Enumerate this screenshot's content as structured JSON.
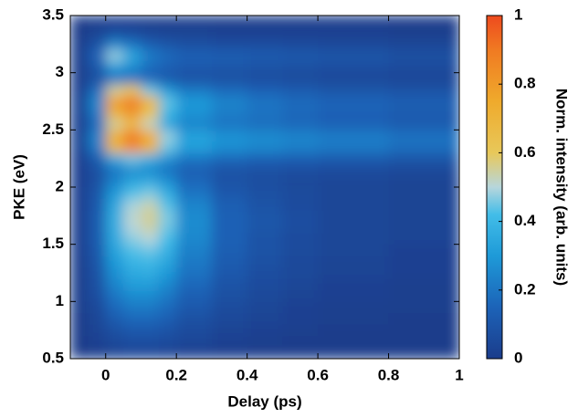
{
  "chart_data": {
    "type": "heatmap",
    "x_label": "Delay (ps)",
    "y_label": "PKE (eV)",
    "colorbar_label": "Norm. intensity (arb. units)",
    "xlim": [
      -0.1,
      1
    ],
    "ylim": [
      0.5,
      3.5
    ],
    "xticks": [
      0,
      0.2,
      0.4,
      0.6,
      0.8,
      1
    ],
    "yticks": [
      0.5,
      1,
      1.5,
      2,
      2.5,
      3,
      3.5
    ],
    "zlim": [
      0,
      1
    ],
    "zticks": [
      0,
      0.2,
      0.4,
      0.6,
      0.8,
      1
    ],
    "colorscale": [
      [
        0,
        "#1b3c8b"
      ],
      [
        0.15,
        "#1c63b8"
      ],
      [
        0.3,
        "#1e9ad8"
      ],
      [
        0.42,
        "#42bde8"
      ],
      [
        0.5,
        "#b7d6dc"
      ],
      [
        0.6,
        "#e8c85a"
      ],
      [
        0.75,
        "#efaa2c"
      ],
      [
        0.9,
        "#f07a22"
      ],
      [
        1,
        "#ee4a1e"
      ]
    ],
    "xbins": [
      -0.1,
      -0.05,
      0,
      0.05,
      0.1,
      0.15,
      0.2,
      0.3,
      0.4,
      0.5,
      0.6,
      0.8,
      1
    ],
    "ybins": [
      0.5,
      0.6,
      0.7,
      0.8,
      0.9,
      1,
      1.1,
      1.2,
      1.3,
      1.4,
      1.5,
      1.6,
      1.7,
      1.8,
      1.9,
      2,
      2.1,
      2.2,
      2.3,
      2.4,
      2.5,
      2.6,
      2.7,
      2.8,
      2.9,
      3,
      3.1,
      3.2,
      3.3,
      3.4,
      3.5
    ],
    "z": [
      [
        0,
        0.01,
        0.03,
        0.04,
        0.04,
        0.03,
        0.02,
        0.01,
        0,
        0,
        0,
        0
      ],
      [
        0,
        0.02,
        0.05,
        0.07,
        0.07,
        0.06,
        0.04,
        0.02,
        0.01,
        0,
        0,
        0
      ],
      [
        0,
        0.03,
        0.08,
        0.11,
        0.11,
        0.09,
        0.06,
        0.03,
        0.02,
        0.01,
        0,
        0
      ],
      [
        0,
        0.04,
        0.12,
        0.16,
        0.16,
        0.13,
        0.08,
        0.05,
        0.03,
        0.02,
        0.01,
        0
      ],
      [
        0.01,
        0.05,
        0.16,
        0.21,
        0.21,
        0.17,
        0.11,
        0.06,
        0.04,
        0.02,
        0.01,
        0.01
      ],
      [
        0.01,
        0.07,
        0.2,
        0.26,
        0.26,
        0.21,
        0.13,
        0.08,
        0.05,
        0.03,
        0.02,
        0.01
      ],
      [
        0.01,
        0.08,
        0.24,
        0.31,
        0.31,
        0.25,
        0.16,
        0.09,
        0.06,
        0.04,
        0.02,
        0.01
      ],
      [
        0.01,
        0.09,
        0.27,
        0.35,
        0.36,
        0.3,
        0.19,
        0.11,
        0.07,
        0.05,
        0.03,
        0.02
      ],
      [
        0.01,
        0.1,
        0.3,
        0.39,
        0.4,
        0.34,
        0.21,
        0.12,
        0.08,
        0.05,
        0.03,
        0.02
      ],
      [
        0.02,
        0.11,
        0.33,
        0.43,
        0.45,
        0.38,
        0.23,
        0.13,
        0.09,
        0.06,
        0.04,
        0.02
      ],
      [
        0.02,
        0.12,
        0.35,
        0.47,
        0.5,
        0.42,
        0.25,
        0.14,
        0.09,
        0.06,
        0.04,
        0.03
      ],
      [
        0.02,
        0.12,
        0.36,
        0.5,
        0.54,
        0.45,
        0.26,
        0.14,
        0.1,
        0.07,
        0.04,
        0.03
      ],
      [
        0.02,
        0.12,
        0.36,
        0.51,
        0.56,
        0.46,
        0.26,
        0.14,
        0.1,
        0.07,
        0.04,
        0.03
      ],
      [
        0.02,
        0.11,
        0.34,
        0.49,
        0.53,
        0.43,
        0.24,
        0.13,
        0.09,
        0.06,
        0.04,
        0.03
      ],
      [
        0.02,
        0.1,
        0.3,
        0.43,
        0.46,
        0.37,
        0.2,
        0.11,
        0.08,
        0.06,
        0.04,
        0.03
      ],
      [
        0.02,
        0.08,
        0.24,
        0.34,
        0.36,
        0.28,
        0.16,
        0.09,
        0.07,
        0.05,
        0.04,
        0.03
      ],
      [
        0.02,
        0.08,
        0.2,
        0.26,
        0.25,
        0.19,
        0.13,
        0.09,
        0.08,
        0.07,
        0.06,
        0.05
      ],
      [
        0.02,
        0.12,
        0.35,
        0.45,
        0.38,
        0.28,
        0.2,
        0.16,
        0.14,
        0.13,
        0.12,
        0.1
      ],
      [
        0.03,
        0.22,
        0.68,
        0.85,
        0.7,
        0.45,
        0.32,
        0.27,
        0.25,
        0.23,
        0.21,
        0.18
      ],
      [
        0.03,
        0.24,
        0.72,
        0.9,
        0.74,
        0.48,
        0.33,
        0.28,
        0.26,
        0.24,
        0.22,
        0.19
      ],
      [
        0.02,
        0.17,
        0.55,
        0.66,
        0.52,
        0.34,
        0.24,
        0.2,
        0.18,
        0.16,
        0.14,
        0.12
      ],
      [
        0.03,
        0.22,
        0.7,
        0.82,
        0.62,
        0.4,
        0.28,
        0.22,
        0.19,
        0.16,
        0.14,
        0.12
      ],
      [
        0.03,
        0.25,
        0.78,
        0.9,
        0.68,
        0.44,
        0.3,
        0.24,
        0.2,
        0.17,
        0.15,
        0.13
      ],
      [
        0.02,
        0.18,
        0.55,
        0.6,
        0.45,
        0.3,
        0.21,
        0.17,
        0.14,
        0.12,
        0.1,
        0.09
      ],
      [
        0.01,
        0.08,
        0.2,
        0.2,
        0.15,
        0.11,
        0.09,
        0.08,
        0.07,
        0.06,
        0.05,
        0.04
      ],
      [
        0.01,
        0.1,
        0.3,
        0.25,
        0.17,
        0.13,
        0.11,
        0.1,
        0.09,
        0.08,
        0.07,
        0.06
      ],
      [
        0.01,
        0.15,
        0.48,
        0.35,
        0.22,
        0.17,
        0.14,
        0.13,
        0.12,
        0.11,
        0.1,
        0.08
      ],
      [
        0.01,
        0.09,
        0.25,
        0.2,
        0.13,
        0.1,
        0.08,
        0.07,
        0.07,
        0.06,
        0.05,
        0.04
      ],
      [
        0,
        0.03,
        0.07,
        0.06,
        0.04,
        0.03,
        0.03,
        0.02,
        0.02,
        0.02,
        0.02,
        0.01
      ],
      [
        0,
        0.01,
        0.02,
        0.02,
        0.01,
        0.01,
        0.01,
        0.01,
        0.01,
        0.01,
        0.01,
        0
      ]
    ]
  }
}
